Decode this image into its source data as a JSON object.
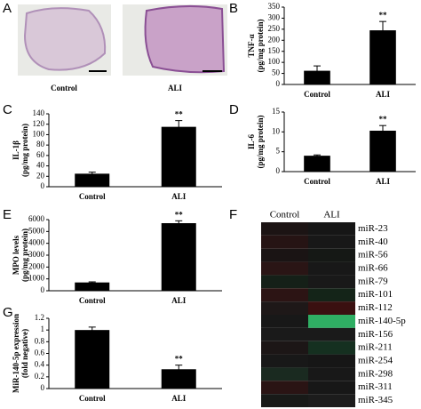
{
  "chart_data": [
    {
      "type": "bar",
      "panel": "B",
      "ylabel": [
        "TNF-α",
        "(pg/mg protein)"
      ],
      "categories": [
        "Control",
        "ALI"
      ],
      "values": [
        62,
        245
      ],
      "errors": [
        22,
        40
      ],
      "annotations": [
        null,
        "**"
      ],
      "color": "#000000",
      "ylim": [
        0,
        350
      ],
      "yticks": [
        0,
        50,
        100,
        150,
        200,
        250,
        300,
        350
      ]
    },
    {
      "type": "bar",
      "panel": "C",
      "ylabel": [
        "IL-1β",
        "(pg/mg protein)"
      ],
      "categories": [
        "Control",
        "ALI"
      ],
      "values": [
        25,
        115
      ],
      "errors": [
        3,
        12
      ],
      "annotations": [
        null,
        "**"
      ],
      "color": "#000000",
      "ylim": [
        0,
        140
      ],
      "yticks": [
        0,
        20,
        40,
        60,
        80,
        100,
        120,
        140
      ]
    },
    {
      "type": "bar",
      "panel": "D",
      "ylabel": [
        "IL-6",
        "(pg/mg protein)"
      ],
      "categories": [
        "Control",
        "ALI"
      ],
      "values": [
        4,
        10.3
      ],
      "errors": [
        0.2,
        1.3
      ],
      "annotations": [
        null,
        "**"
      ],
      "color": "#000000",
      "ylim": [
        0,
        15
      ],
      "yticks": [
        0,
        5,
        10,
        15
      ]
    },
    {
      "type": "bar",
      "panel": "E",
      "ylabel": [
        "MPO levels",
        "(pg/mg protein)"
      ],
      "categories": [
        "Control",
        "ALI"
      ],
      "values": [
        700,
        5700
      ],
      "errors": [
        50,
        200
      ],
      "annotations": [
        null,
        "**"
      ],
      "color": "#000000",
      "ylim": [
        0,
        6000
      ],
      "yticks": [
        0,
        1000,
        2000,
        3000,
        4000,
        5000,
        6000
      ]
    },
    {
      "type": "bar",
      "panel": "G",
      "ylabel": [
        "MiR-140-5p expression",
        "(fold negative)"
      ],
      "categories": [
        "Control",
        "ALI"
      ],
      "values": [
        1.0,
        0.33
      ],
      "errors": [
        0.05,
        0.07
      ],
      "annotations": [
        null,
        "**"
      ],
      "color": "#000000",
      "ylim": [
        0,
        1.2
      ],
      "yticks": [
        0,
        0.2,
        0.4,
        0.6,
        0.8,
        1,
        1.2
      ]
    },
    {
      "type": "heatmap",
      "panel": "F",
      "columns": [
        "Control",
        "ALI"
      ],
      "rows": [
        "miR-23",
        "miR-40",
        "miR-56",
        "miR-66",
        "miR-79",
        "miR-101",
        "miR-112",
        "miR-140-5p",
        "miR-156",
        "miR-211",
        "miR-254",
        "miR-298",
        "miR-311",
        "miR-345"
      ],
      "colors": [
        [
          "#1c1414",
          "#161616"
        ],
        [
          "#261414",
          "#181818"
        ],
        [
          "#1a1414",
          "#151815"
        ],
        [
          "#2a1515",
          "#181818"
        ],
        [
          "#152018",
          "#191919"
        ],
        [
          "#2c1414",
          "#142418"
        ],
        [
          "#1e1818",
          "#3a1010"
        ],
        [
          "#181818",
          "#2fae63"
        ],
        [
          "#1a1a1a",
          "#1a1a1a"
        ],
        [
          "#1c1616",
          "#153020"
        ],
        [
          "#181818",
          "#161616"
        ],
        [
          "#1a2a20",
          "#181818"
        ],
        [
          "#2a1414",
          "#171717"
        ],
        [
          "#181a18",
          "#1c1c1c"
        ]
      ]
    }
  ],
  "panel_a": {
    "panel": "A",
    "captions": [
      "Control",
      "ALI"
    ]
  }
}
